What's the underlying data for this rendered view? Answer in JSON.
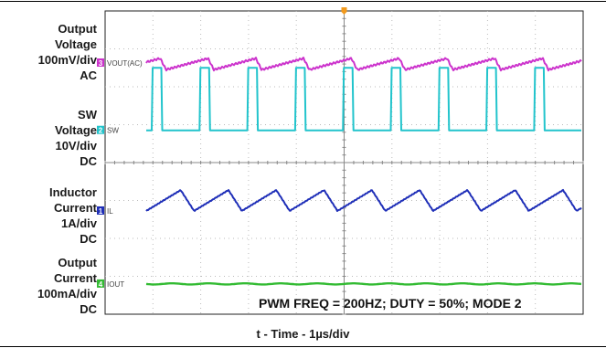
{
  "channel_labels": [
    {
      "lines": [
        "Output",
        "Voltage",
        "100mV/div",
        "AC"
      ]
    },
    {
      "lines": [
        "SW",
        "Voltage",
        "10V/div",
        "DC"
      ]
    },
    {
      "lines": [
        "Inductor",
        "Current",
        "1A/div",
        "DC"
      ]
    },
    {
      "lines": [
        "Output",
        "Current",
        "100mA/div",
        "DC"
      ]
    }
  ],
  "chart_data": {
    "type": "line",
    "xlabel": "t - Time - 1µs/div",
    "annotation": "PWM FREQ = 200HZ; DUTY = 50%; MODE 2",
    "x_divisions": 10,
    "y_divisions": 8,
    "channels": [
      {
        "marker": "3",
        "name": "VOUT(AC)",
        "color": "#cc33cc",
        "period_div": 1.0,
        "high_div": 0.5,
        "waveform": "ripple",
        "ripple_pp_div": 0.3,
        "level_div": 1.4
      },
      {
        "marker": "2",
        "name": "SW",
        "color": "#22c4cc",
        "period_div": 1.0,
        "high_div": 0.2,
        "waveform": "pulse",
        "low_level_div": 3.15,
        "high_level_div": 1.5
      },
      {
        "marker": "1",
        "name": "IL",
        "color": "#1f2fb8",
        "period_div": 1.0,
        "waveform": "triangle",
        "ripple_pp_div": 0.55,
        "level_div": 5.0
      },
      {
        "marker": "4",
        "name": "IOUT",
        "color": "#33bb33",
        "waveform": "flat",
        "level_div": 7.2
      }
    ]
  }
}
